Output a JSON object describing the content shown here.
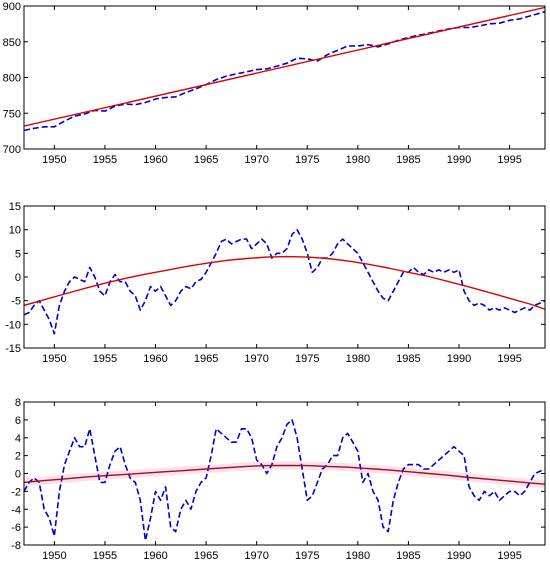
{
  "chart_data": [
    {
      "type": "line",
      "xlim": [
        1947,
        1998.5
      ],
      "ylim": [
        700,
        900
      ],
      "xticks": [
        1950,
        1955,
        1960,
        1965,
        1970,
        1975,
        1980,
        1985,
        1990,
        1995
      ],
      "yticks": [
        700,
        750,
        800,
        850,
        900
      ],
      "title": "",
      "xlabel": "",
      "ylabel": "",
      "grid": false,
      "series": [
        {
          "style": "dashed",
          "color": "#0000cc",
          "x": [
            1947,
            1948,
            1949,
            1950,
            1951,
            1952,
            1953,
            1954,
            1955,
            1956,
            1957,
            1958,
            1959,
            1960,
            1961,
            1962,
            1963,
            1964,
            1965,
            1966,
            1967,
            1968,
            1969,
            1970,
            1971,
            1972,
            1973,
            1974,
            1975,
            1976,
            1977,
            1978,
            1979,
            1980,
            1981,
            1982,
            1983,
            1984,
            1985,
            1986,
            1987,
            1988,
            1989,
            1990,
            1991,
            1992,
            1993,
            1994,
            1995,
            1996,
            1997,
            1998.5
          ],
          "y": [
            726,
            729,
            731,
            731,
            739,
            746,
            749,
            754,
            753,
            760,
            763,
            762,
            765,
            770,
            772,
            773,
            779,
            784,
            790,
            797,
            802,
            805,
            808,
            811,
            812,
            816,
            820,
            827,
            826,
            823,
            832,
            838,
            844,
            844,
            846,
            843,
            847,
            852,
            856,
            859,
            862,
            865,
            868,
            870,
            870,
            872,
            875,
            876,
            880,
            882,
            886,
            892
          ]
        },
        {
          "style": "solid",
          "color": "#e00000",
          "x": [
            1947,
            1998.5
          ],
          "y": [
            732,
            898
          ]
        }
      ]
    },
    {
      "type": "line",
      "xlim": [
        1947,
        1998.5
      ],
      "ylim": [
        -15,
        15
      ],
      "xticks": [
        1950,
        1955,
        1960,
        1965,
        1970,
        1975,
        1980,
        1985,
        1990,
        1995
      ],
      "yticks": [
        -15,
        -10,
        -5,
        0,
        5,
        10,
        15
      ],
      "title": "",
      "xlabel": "",
      "ylabel": "",
      "grid": false,
      "series": [
        {
          "style": "dashed",
          "color": "#0000cc",
          "x": [
            1947,
            1947.5,
            1948,
            1948.5,
            1949,
            1949.5,
            1950,
            1950.5,
            1951,
            1951.5,
            1952,
            1952.5,
            1953,
            1953.5,
            1954,
            1954.5,
            1955,
            1955.5,
            1956,
            1956.5,
            1957,
            1957.5,
            1958,
            1958.5,
            1959,
            1959.5,
            1960,
            1960.5,
            1961,
            1961.5,
            1962,
            1962.5,
            1963,
            1963.5,
            1964,
            1964.5,
            1965,
            1965.5,
            1966,
            1966.5,
            1967,
            1967.5,
            1968,
            1968.5,
            1969,
            1969.5,
            1970,
            1970.5,
            1971,
            1971.5,
            1972,
            1972.5,
            1973,
            1973.5,
            1974,
            1974.5,
            1975,
            1975.5,
            1976,
            1976.5,
            1977,
            1977.5,
            1978,
            1978.5,
            1979,
            1979.5,
            1980,
            1980.5,
            1981,
            1981.5,
            1982,
            1982.5,
            1983,
            1983.5,
            1984,
            1984.5,
            1985,
            1985.5,
            1986,
            1986.5,
            1987,
            1987.5,
            1988,
            1988.5,
            1989,
            1989.5,
            1990,
            1990.5,
            1991,
            1991.5,
            1992,
            1992.5,
            1993,
            1993.5,
            1994,
            1994.5,
            1995,
            1995.5,
            1996,
            1996.5,
            1997,
            1997.5,
            1998.5
          ],
          "y": [
            -8,
            -7.5,
            -6,
            -5,
            -7,
            -9,
            -12,
            -6,
            -3,
            -1,
            0,
            -0.5,
            -1,
            2,
            0,
            -3,
            -4,
            -1,
            0.5,
            -1,
            -1,
            -3,
            -4,
            -7,
            -5,
            -2,
            -3,
            -2,
            -4,
            -6,
            -5,
            -3,
            -2,
            -2.5,
            -1,
            -0.5,
            1,
            3,
            5,
            7.5,
            8,
            7,
            7.5,
            8,
            8,
            6,
            7,
            8,
            7,
            4,
            5,
            5,
            6,
            9,
            10,
            8,
            5,
            1,
            2,
            4,
            4,
            5,
            7,
            8,
            7,
            6,
            5,
            3,
            1,
            -1,
            -3,
            -4.5,
            -5,
            -3,
            -1,
            1,
            1,
            2,
            1,
            0.5,
            1.5,
            1,
            1.5,
            1,
            1.5,
            1,
            1.5,
            -3,
            -5,
            -6,
            -5.5,
            -6,
            -7,
            -6.5,
            -7,
            -6.5,
            -7,
            -7.5,
            -7,
            -6.5,
            -7,
            -6,
            -5
          ]
        },
        {
          "style": "solid",
          "color": "#e00000",
          "x": [
            1947,
            1949,
            1951,
            1953,
            1955,
            1957,
            1959,
            1961,
            1963,
            1965,
            1967,
            1969,
            1971,
            1973,
            1975,
            1977,
            1979,
            1981,
            1983,
            1985,
            1987,
            1989,
            1991,
            1993,
            1995,
            1997,
            1998.5
          ],
          "y": [
            -6,
            -4.8,
            -3.6,
            -2.4,
            -1.3,
            -0.3,
            0.6,
            1.4,
            2.2,
            2.9,
            3.5,
            3.9,
            4.2,
            4.3,
            4.2,
            3.9,
            3.4,
            2.7,
            1.9,
            1.0,
            0.1,
            -1.0,
            -2.1,
            -3.3,
            -4.5,
            -5.7,
            -6.8
          ]
        }
      ]
    },
    {
      "type": "line",
      "xlim": [
        1947,
        1998.5
      ],
      "ylim": [
        -8,
        8
      ],
      "xticks": [
        1950,
        1955,
        1960,
        1965,
        1970,
        1975,
        1980,
        1985,
        1990,
        1995
      ],
      "yticks": [
        -8,
        -6,
        -4,
        -2,
        0,
        2,
        4,
        6,
        8
      ],
      "title": "",
      "xlabel": "",
      "ylabel": "",
      "grid": false,
      "band_color": "#ffd6ec",
      "series": [
        {
          "style": "dashed",
          "color": "#0000cc",
          "x": [
            1947,
            1947.5,
            1948,
            1948.5,
            1949,
            1949.5,
            1950,
            1950.5,
            1951,
            1951.5,
            1952,
            1952.5,
            1953,
            1953.5,
            1954,
            1954.5,
            1955,
            1955.5,
            1956,
            1956.5,
            1957,
            1957.5,
            1958,
            1958.5,
            1959,
            1959.5,
            1960,
            1960.5,
            1961,
            1961.5,
            1962,
            1962.5,
            1963,
            1963.5,
            1964,
            1964.5,
            1965,
            1965.5,
            1966,
            1966.5,
            1967,
            1967.5,
            1968,
            1968.5,
            1969,
            1969.5,
            1970,
            1970.5,
            1971,
            1971.5,
            1972,
            1972.5,
            1973,
            1973.5,
            1974,
            1974.5,
            1975,
            1975.5,
            1976,
            1976.5,
            1977,
            1977.5,
            1978,
            1978.5,
            1979,
            1979.5,
            1980,
            1980.5,
            1981,
            1981.5,
            1982,
            1982.5,
            1983,
            1983.5,
            1984,
            1984.5,
            1985,
            1985.5,
            1986,
            1986.5,
            1987,
            1987.5,
            1988,
            1988.5,
            1989,
            1989.5,
            1990,
            1990.5,
            1991,
            1991.5,
            1992,
            1992.5,
            1993,
            1993.5,
            1994,
            1994.5,
            1995,
            1995.5,
            1996,
            1996.5,
            1997,
            1997.5,
            1998.5
          ],
          "y": [
            -2,
            -1,
            -0.5,
            -1,
            -4,
            -5,
            -7,
            -2,
            1,
            2.5,
            4,
            3,
            3,
            5,
            2,
            -1,
            -1,
            1,
            2.5,
            3,
            1,
            -0.5,
            -1,
            -3,
            -7.5,
            -5,
            -2,
            -3,
            -1.5,
            -6,
            -6.5,
            -4,
            -3,
            -4,
            -2,
            -1,
            -0.5,
            2,
            5,
            4.5,
            4,
            3.5,
            3.5,
            5,
            5,
            4,
            1.5,
            1,
            0,
            1,
            3,
            4,
            5.5,
            6,
            4,
            0.5,
            -3,
            -2.5,
            -1,
            0.5,
            1,
            2,
            2,
            4,
            4.5,
            3.5,
            2.5,
            -1,
            0,
            -2,
            -3,
            -6,
            -6.5,
            -3,
            -1,
            0.5,
            1,
            1,
            1,
            0.5,
            0.5,
            1,
            1.5,
            2,
            2.5,
            3,
            2.5,
            2,
            -1.5,
            -2.5,
            -3,
            -2,
            -2.5,
            -2,
            -3,
            -2.5,
            -2,
            -2,
            -2.5,
            -2,
            -1,
            0,
            0.5
          ]
        },
        {
          "style": "solid",
          "color": "#8b1a1a",
          "x": [
            1947,
            1949,
            1951,
            1953,
            1955,
            1957,
            1959,
            1961,
            1963,
            1965,
            1967,
            1969,
            1971,
            1973,
            1975,
            1977,
            1979,
            1981,
            1983,
            1985,
            1987,
            1989,
            1991,
            1993,
            1995,
            1997,
            1998.5
          ],
          "y": [
            -1.0,
            -0.8,
            -0.6,
            -0.4,
            -0.25,
            -0.1,
            0.05,
            0.2,
            0.35,
            0.5,
            0.65,
            0.8,
            0.88,
            0.9,
            0.88,
            0.8,
            0.7,
            0.55,
            0.4,
            0.2,
            0.0,
            -0.2,
            -0.45,
            -0.65,
            -0.85,
            -1.05,
            -1.2
          ]
        }
      ]
    }
  ]
}
